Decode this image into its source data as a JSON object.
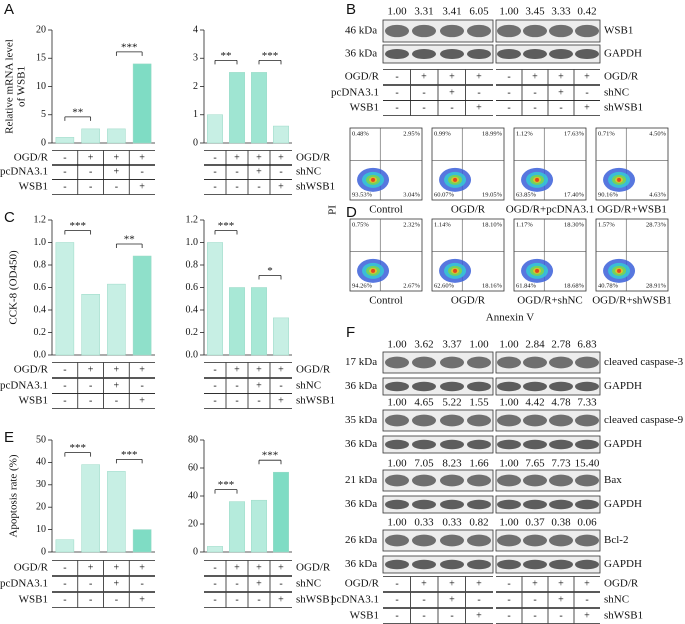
{
  "panel_labels": [
    "A",
    "B",
    "C",
    "D",
    "E",
    "F"
  ],
  "chart_data": [
    {
      "type": "bar",
      "ylabel": [
        "Relative mRNA level",
        "of WSB1"
      ],
      "ylim": [
        0,
        20
      ],
      "yticks": [
        0,
        5,
        10,
        15,
        20
      ],
      "values": [
        1,
        2.5,
        2.5,
        14
      ],
      "colors": [
        "#c7efe4",
        "#c7efe4",
        "#c7efe4",
        "#7fdcc4"
      ],
      "annotations": [
        "**",
        "***"
      ]
    },
    {
      "type": "bar",
      "ylim": [
        0,
        4
      ],
      "yticks": [
        0,
        1,
        2,
        3,
        4
      ],
      "values": [
        1,
        2.5,
        2.5,
        0.6
      ],
      "colors": [
        "#c7efe4",
        "#9fe5d2",
        "#9fe5d2",
        "#c7efe4"
      ],
      "annotations": [
        "**",
        "***"
      ]
    },
    {
      "type": "bar",
      "ylabel": [
        "CCK-8 (OD450)"
      ],
      "ylim": [
        0,
        1.2
      ],
      "yticks": [
        {
          "value": 0,
          "label": "0.0"
        },
        0.2,
        0.4,
        0.6,
        0.8,
        {
          "value": 1,
          "label": "1.0"
        },
        1.2
      ],
      "values": [
        1.0,
        0.54,
        0.63,
        0.88
      ],
      "colors": [
        "#c7efe4",
        "#c7efe4",
        "#c7efe4",
        "#8fe0ca"
      ],
      "annotations": [
        "***",
        "**"
      ]
    },
    {
      "type": "bar",
      "ylim": [
        0,
        1.2
      ],
      "yticks": [
        {
          "value": 0,
          "label": "0.0"
        },
        0.2,
        0.4,
        0.6,
        0.8,
        {
          "value": 1,
          "label": "1.0"
        },
        1.2
      ],
      "values": [
        1.0,
        0.6,
        0.6,
        0.33
      ],
      "colors": [
        "#c7efe4",
        "#a8e8d6",
        "#a8e8d6",
        "#c7efe4"
      ],
      "annotations": [
        "***",
        "*"
      ]
    },
    {
      "type": "bar",
      "ylabel": [
        "Apoptosis rate (%)"
      ],
      "ylim": [
        0,
        50
      ],
      "yticks": [
        0,
        10,
        20,
        30,
        40,
        50
      ],
      "values": [
        5.5,
        39,
        36,
        10
      ],
      "colors": [
        "#c7efe4",
        "#c7efe4",
        "#c7efe4",
        "#7fdcc4"
      ],
      "annotations": [
        "***",
        "***"
      ]
    },
    {
      "type": "bar",
      "ylim": [
        0,
        80
      ],
      "yticks": [
        0,
        20,
        40,
        60,
        80
      ],
      "values": [
        4,
        36,
        37,
        57
      ],
      "colors": [
        "#c7efe4",
        "#b5ebdc",
        "#b5ebdc",
        "#7fdcc4"
      ],
      "annotations": [
        "***",
        "***"
      ]
    }
  ],
  "conditions": {
    "left_rows": [
      "OGD/R",
      "pcDNA3.1",
      "WSB1"
    ],
    "right_rows": [
      "OGD/R",
      "shNC",
      "shWSB1"
    ],
    "left_signs": [
      [
        "-",
        "+",
        "+",
        "+"
      ],
      [
        "-",
        "-",
        "+",
        "-"
      ],
      [
        "-",
        "-",
        "-",
        "+"
      ]
    ],
    "right_signs": [
      [
        "-",
        "+",
        "+",
        "+"
      ],
      [
        "-",
        "-",
        "+",
        "-"
      ],
      [
        "-",
        "-",
        "-",
        "+"
      ]
    ]
  },
  "blot_b": {
    "kda": "46 kDa",
    "name": "WSB1",
    "values": [
      "1.00",
      "3.31",
      "3.41",
      "6.05",
      "1.00",
      "3.45",
      "3.33",
      "0.42"
    ],
    "gapdh_kda": "36 kDa",
    "gapdh": "GAPDH"
  },
  "flow": {
    "ylabel": "PI",
    "xlabel": "Annexin V",
    "plots": [
      {
        "quadrants": [
          "0.48%",
          "2.95%",
          "93.53%",
          "3.04%"
        ],
        "label": "Control"
      },
      {
        "quadrants": [
          "0.99%",
          "18.99%",
          "60.07%",
          "19.05%"
        ],
        "label": "OGD/R"
      },
      {
        "quadrants": [
          "1.12%",
          "17.63%",
          "63.85%",
          "17.40%"
        ],
        "label": "OGD/R+pcDNA3.1"
      },
      {
        "quadrants": [
          "0.71%",
          "4.50%",
          "90.16%",
          "4.63%"
        ],
        "label": "OGD/R+WSB1"
      },
      {
        "quadrants": [
          "0.75%",
          "2.32%",
          "94.26%",
          "2.67%"
        ],
        "label": "Control"
      },
      {
        "quadrants": [
          "1.14%",
          "18.10%",
          "62.60%",
          "18.16%"
        ],
        "label": "OGD/R"
      },
      {
        "quadrants": [
          "1.17%",
          "18.30%",
          "61.84%",
          "18.68%"
        ],
        "label": "OGD/R+shNC"
      },
      {
        "quadrants": [
          "1.57%",
          "28.73%",
          "40.78%",
          "28.91%"
        ],
        "label": "OGD/R+shWSB1"
      }
    ]
  },
  "blot_f": [
    {
      "kda": "17 kDa",
      "name": "cleaved caspase-3",
      "values": [
        "1.00",
        "3.62",
        "3.37",
        "1.00",
        "1.00",
        "2.84",
        "2.78",
        "6.83"
      ],
      "gapdh_kda": "36 kDa",
      "gapdh": "GAPDH"
    },
    {
      "kda": "35 kDa",
      "name": "cleaved caspase-9",
      "values": [
        "1.00",
        "4.65",
        "5.22",
        "1.55",
        "1.00",
        "4.42",
        "4.78",
        "7.33"
      ],
      "gapdh_kda": "36 kDa",
      "gapdh": "GAPDH"
    },
    {
      "kda": "21 kDa",
      "name": "Bax",
      "values": [
        "1.00",
        "7.05",
        "8.23",
        "1.66",
        "1.00",
        "7.65",
        "7.73",
        "15.40"
      ],
      "gapdh_kda": "36 kDa",
      "gapdh": "GAPDH"
    },
    {
      "kda": "26 kDa",
      "name": "Bcl-2",
      "values": [
        "1.00",
        "0.33",
        "0.33",
        "0.82",
        "1.00",
        "0.37",
        "0.38",
        "0.06"
      ],
      "gapdh_kda": "36 kDa",
      "gapdh": "GAPDH"
    }
  ]
}
